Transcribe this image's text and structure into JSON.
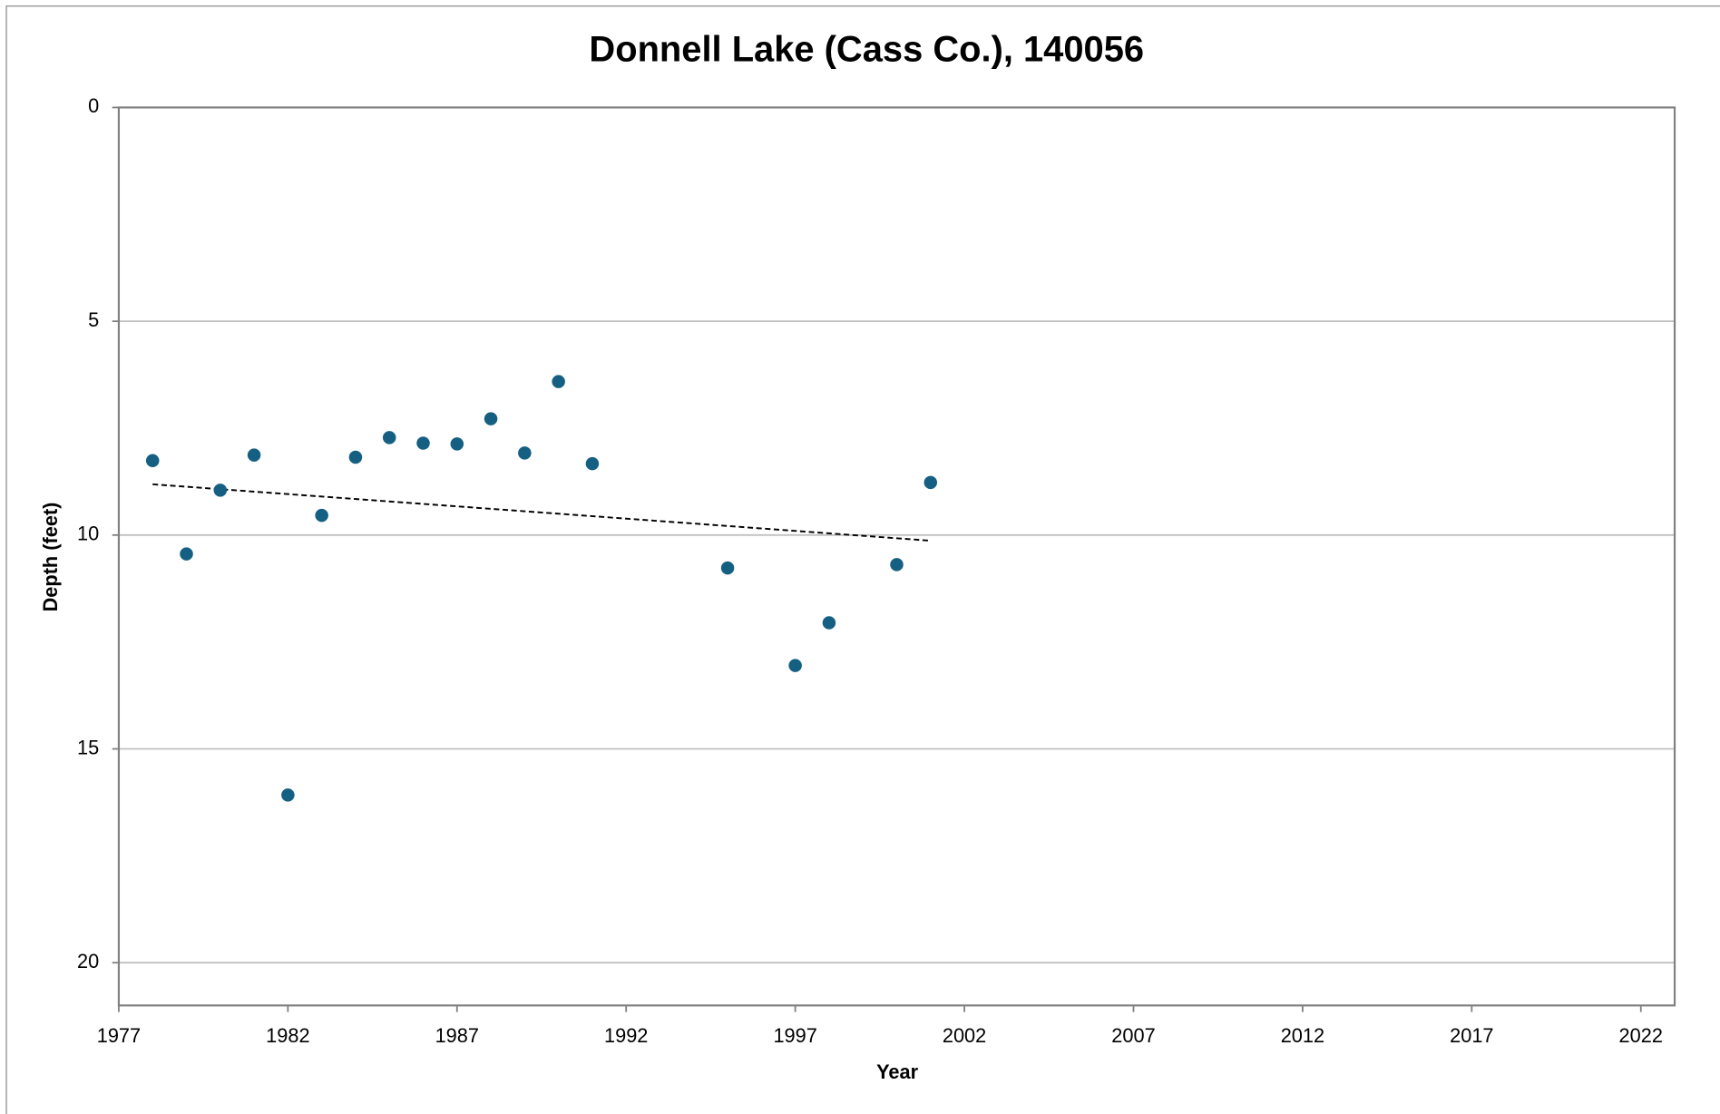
{
  "chart_data": {
    "type": "scatter",
    "title": "Donnell Lake (Cass Co.), 140056",
    "x_label": "Year",
    "y_label": "Depth (feet)",
    "series": [
      {
        "name": "Depth",
        "color": "#156082",
        "x": [
          1978,
          1979,
          1980,
          1981,
          1982,
          1983,
          1984,
          1985,
          1986,
          1987,
          1988,
          1989,
          1990,
          1991,
          1995,
          1997,
          1998,
          2000,
          2001
        ],
        "values": [
          8.26,
          10.44,
          8.95,
          8.13,
          16.08,
          9.54,
          8.18,
          7.72,
          7.85,
          7.87,
          7.28,
          8.08,
          6.41,
          8.33,
          10.77,
          13.05,
          12.05,
          10.69,
          8.77
        ]
      }
    ],
    "xlim": [
      1977,
      2023
    ],
    "xticks": [
      1977,
      1982,
      1987,
      1992,
      1997,
      2002,
      2007,
      2012,
      2017,
      2022
    ],
    "ylim": [
      0,
      21
    ],
    "yticks": [
      0,
      5,
      10,
      15,
      20
    ],
    "y_reversed": true,
    "grid": true,
    "trendline": true,
    "trendline_color": "#000000"
  }
}
